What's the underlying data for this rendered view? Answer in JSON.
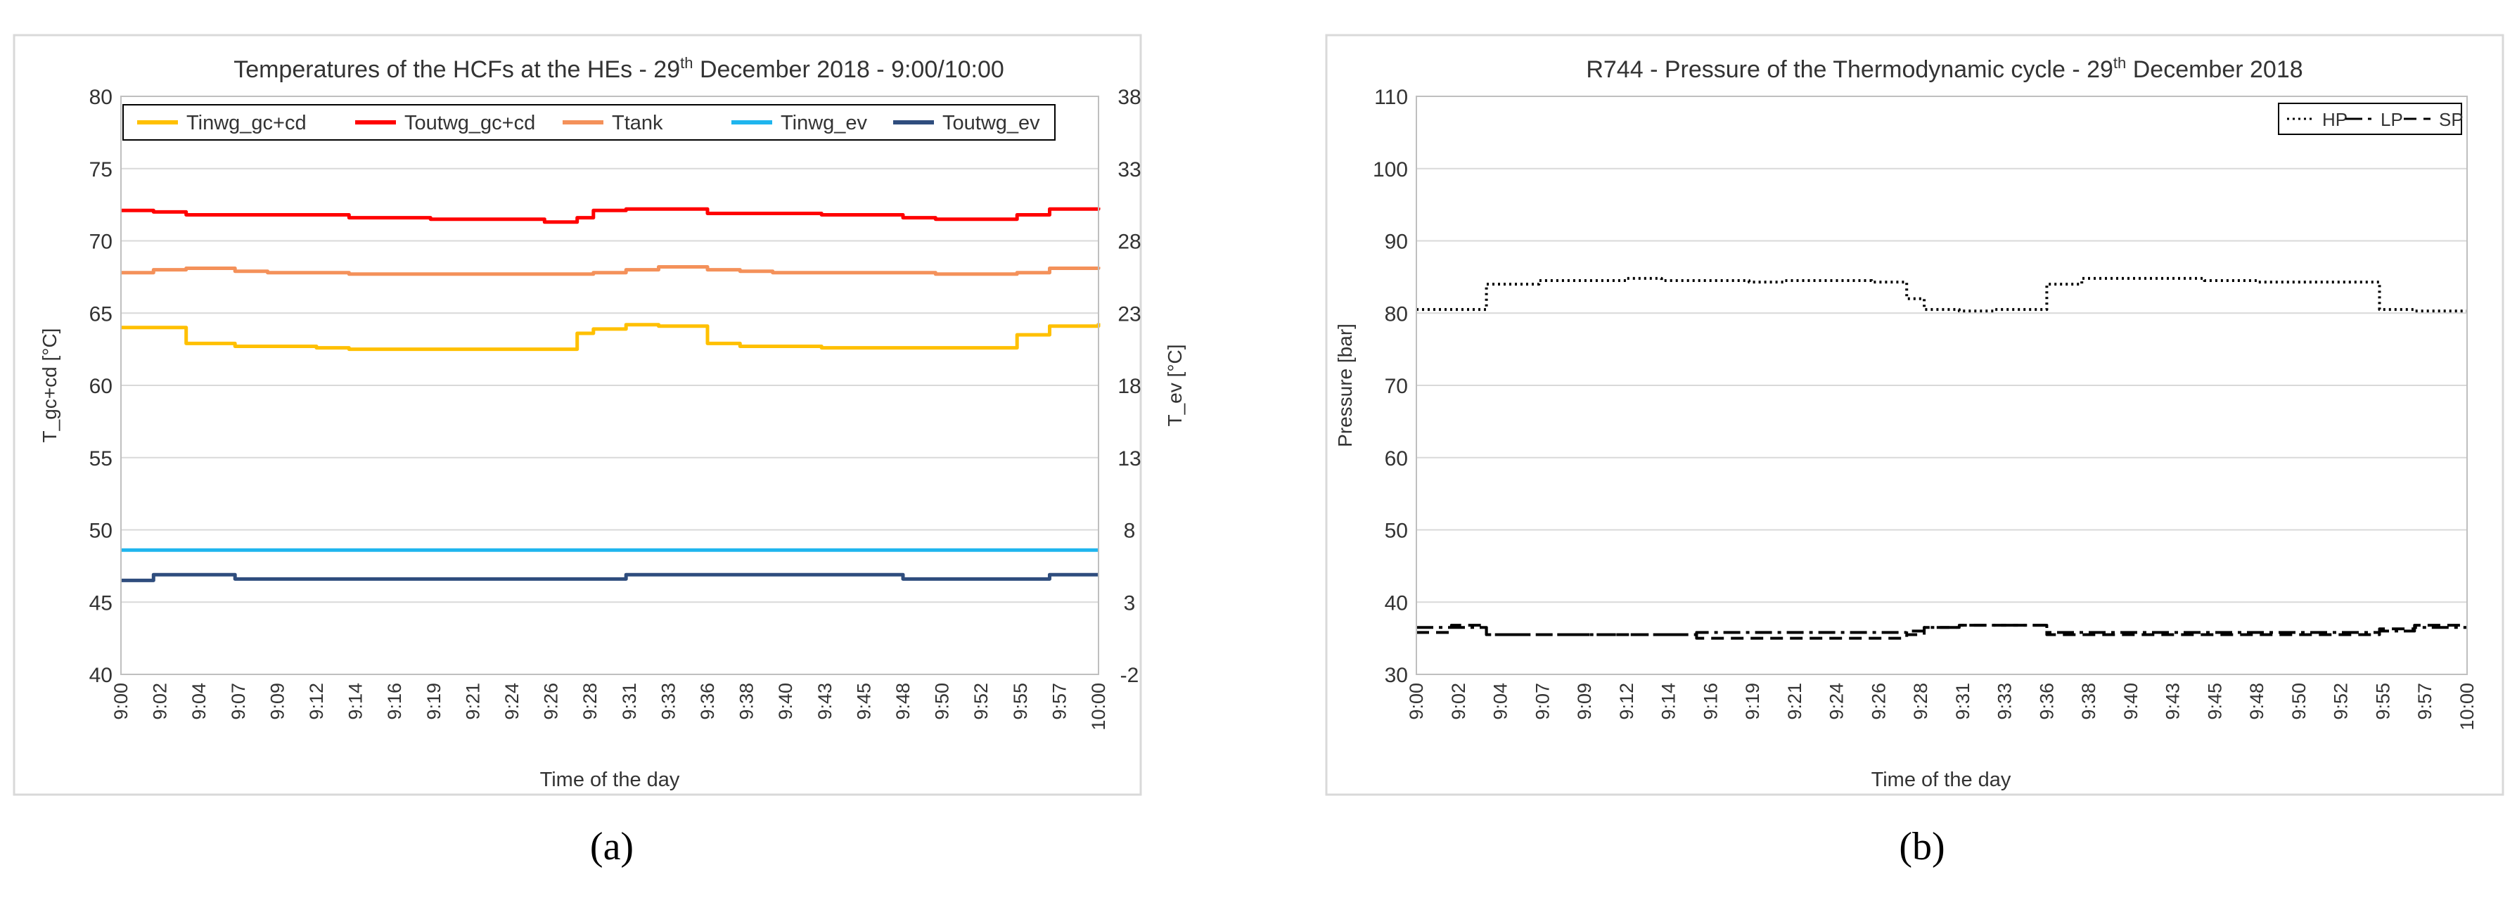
{
  "chart_data": [
    {
      "type": "line",
      "panel_label": "(a)",
      "title_pre": "Temperatures of the HCFs at the HEs - 29",
      "title_sup": "th",
      "title_post": " December 2018 - 9:00/10:00",
      "xlabel": "Time of the day",
      "ylabel": "T_gc+cd [°C]",
      "ylabel_right": "T_ev [°C]",
      "ylim": [
        40,
        80
      ],
      "ylim_right": [
        -2,
        38
      ],
      "yticks": [
        "40",
        "45",
        "50",
        "55",
        "60",
        "65",
        "70",
        "75",
        "80"
      ],
      "yticks_right": [
        "-2",
        "3",
        "8",
        "13",
        "18",
        "23",
        "28",
        "33",
        "38"
      ],
      "x_tick_labels": [
        "9:00",
        "9:02",
        "9:04",
        "9:07",
        "9:09",
        "9:12",
        "9:14",
        "9:16",
        "9:19",
        "9:21",
        "9:24",
        "9:26",
        "9:28",
        "9:31",
        "9:33",
        "9:36",
        "9:38",
        "9:40",
        "9:43",
        "9:45",
        "9:48",
        "9:50",
        "9:52",
        "9:55",
        "9:57",
        "10:00"
      ],
      "x": [
        0,
        2,
        4,
        7,
        9,
        12,
        14,
        16,
        19,
        21,
        24,
        26,
        28,
        29,
        31,
        33,
        36,
        38,
        40,
        43,
        45,
        48,
        50,
        52,
        55,
        57,
        60
      ],
      "series": [
        {
          "name": "Tinwg_gc+cd",
          "color": "#ffc000",
          "axis": "left",
          "values": [
            64.0,
            64.0,
            62.9,
            62.7,
            62.7,
            62.6,
            62.5,
            62.5,
            62.5,
            62.5,
            62.5,
            62.5,
            63.6,
            63.9,
            64.2,
            64.1,
            62.9,
            62.7,
            62.7,
            62.6,
            62.6,
            62.6,
            62.6,
            62.6,
            63.5,
            64.1,
            64.3
          ]
        },
        {
          "name": "Toutwg_gc+cd",
          "color": "#ff0000",
          "axis": "left",
          "values": [
            72.1,
            72.0,
            71.8,
            71.8,
            71.8,
            71.8,
            71.6,
            71.6,
            71.5,
            71.5,
            71.5,
            71.3,
            71.6,
            72.1,
            72.2,
            72.2,
            71.9,
            71.9,
            71.9,
            71.8,
            71.8,
            71.6,
            71.5,
            71.5,
            71.8,
            72.2,
            72.3
          ]
        },
        {
          "name": "Ttank",
          "color": "#f4915a",
          "axis": "left",
          "values": [
            67.8,
            68.0,
            68.1,
            67.9,
            67.8,
            67.8,
            67.7,
            67.7,
            67.7,
            67.7,
            67.7,
            67.7,
            67.7,
            67.8,
            68.0,
            68.2,
            68.0,
            67.9,
            67.8,
            67.8,
            67.8,
            67.8,
            67.7,
            67.7,
            67.8,
            68.1,
            68.2
          ]
        },
        {
          "name": "Tinwg_ev",
          "color": "#1fb5ee",
          "axis": "right",
          "values": [
            6.6,
            6.6,
            6.6,
            6.6,
            6.6,
            6.6,
            6.6,
            6.6,
            6.6,
            6.6,
            6.6,
            6.6,
            6.6,
            6.6,
            6.6,
            6.6,
            6.6,
            6.6,
            6.6,
            6.6,
            6.6,
            6.6,
            6.6,
            6.6,
            6.6,
            6.6,
            6.6
          ]
        },
        {
          "name": "Toutwg_ev",
          "color": "#2f4d7e",
          "axis": "right",
          "values": [
            4.5,
            4.9,
            4.9,
            4.6,
            4.6,
            4.6,
            4.6,
            4.6,
            4.6,
            4.6,
            4.6,
            4.6,
            4.6,
            4.6,
            4.9,
            4.9,
            4.9,
            4.9,
            4.9,
            4.9,
            4.9,
            4.6,
            4.6,
            4.6,
            4.6,
            4.9,
            4.9
          ]
        }
      ]
    },
    {
      "type": "line",
      "panel_label": "(b)",
      "title_pre": "R744 - Pressure of the Thermodynamic cycle - 29",
      "title_sup": "th",
      "title_post": " December 2018",
      "xlabel": "Time of the day",
      "ylabel": "Pressure [bar]",
      "ylim": [
        30,
        110
      ],
      "yticks": [
        "30",
        "40",
        "50",
        "60",
        "70",
        "80",
        "90",
        "100",
        "110"
      ],
      "x_tick_labels": [
        "9:00",
        "9:02",
        "9:04",
        "9:07",
        "9:09",
        "9:12",
        "9:14",
        "9:16",
        "9:19",
        "9:21",
        "9:24",
        "9:26",
        "9:28",
        "9:31",
        "9:33",
        "9:36",
        "9:38",
        "9:40",
        "9:43",
        "9:45",
        "9:48",
        "9:50",
        "9:52",
        "9:55",
        "9:57",
        "10:00"
      ],
      "x": [
        0,
        2,
        4,
        7,
        9,
        12,
        14,
        16,
        19,
        21,
        24,
        26,
        28,
        29,
        31,
        33,
        36,
        38,
        40,
        43,
        45,
        48,
        50,
        52,
        55,
        57,
        60
      ],
      "series": [
        {
          "name": "HP",
          "dash": "dotted",
          "color": "#000000",
          "values": [
            80.5,
            80.5,
            84.0,
            84.5,
            84.5,
            84.8,
            84.5,
            84.5,
            84.3,
            84.5,
            84.5,
            84.3,
            82.0,
            80.5,
            80.3,
            80.5,
            84.0,
            84.8,
            84.8,
            84.8,
            84.5,
            84.3,
            84.3,
            84.3,
            80.5,
            80.3,
            80.3
          ]
        },
        {
          "name": "LP",
          "dash": "dashdot",
          "color": "#000000",
          "values": [
            36.5,
            36.5,
            35.5,
            35.5,
            35.5,
            35.5,
            35.5,
            35.8,
            35.8,
            35.8,
            35.8,
            35.8,
            36.0,
            36.5,
            36.8,
            36.8,
            35.8,
            35.8,
            35.8,
            35.8,
            35.8,
            35.8,
            35.8,
            35.8,
            36.0,
            36.5,
            36.5
          ]
        },
        {
          "name": "SP",
          "dash": "dashed",
          "color": "#000000",
          "values": [
            35.8,
            36.8,
            35.5,
            35.5,
            35.5,
            35.5,
            35.5,
            35.0,
            35.0,
            35.0,
            35.0,
            35.0,
            35.5,
            36.5,
            36.8,
            36.8,
            35.5,
            35.5,
            35.5,
            35.5,
            35.5,
            35.5,
            35.5,
            35.5,
            36.3,
            36.8,
            36.8
          ]
        }
      ]
    }
  ]
}
